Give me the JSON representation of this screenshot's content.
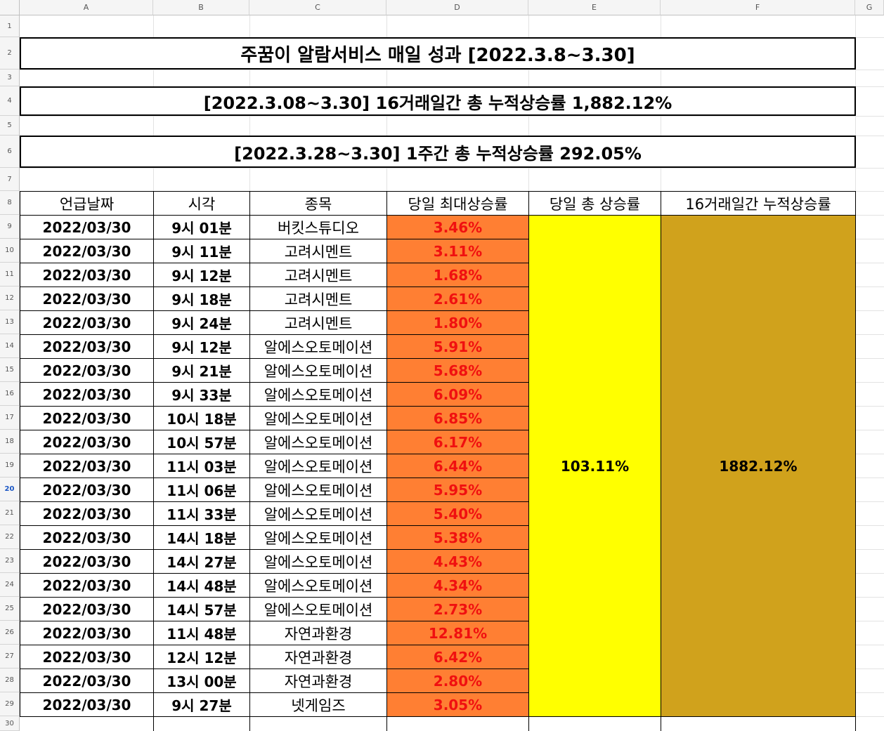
{
  "sheet": {
    "columns": [
      "A",
      "B",
      "C",
      "D",
      "E",
      "F",
      "G"
    ],
    "rows": [
      "1",
      "2",
      "3",
      "4",
      "5",
      "6",
      "7",
      "8",
      "9",
      "10",
      "11",
      "12",
      "13",
      "14",
      "15",
      "16",
      "17",
      "18",
      "19",
      "20",
      "21",
      "22",
      "23",
      "24",
      "25",
      "26",
      "27",
      "28",
      "29",
      "30"
    ],
    "active_row": "20"
  },
  "titles": {
    "main": "주꿈이 알람서비스 매일 성과 [2022.3.8~3.30]",
    "cumulative": "[2022.3.08~3.30] 16거래일간 총 누적상승률 1,882.12%",
    "weekly": "[2022.3.28~3.30] 1주간 총 누적상승률 292.05%"
  },
  "table": {
    "headers": {
      "date": "언급날짜",
      "time": "시각",
      "stock": "종목",
      "daily_max": "당일 최대상승률",
      "daily_total": "당일 총 상승률",
      "cumulative": "16거래일간 누적상승률"
    },
    "rows": [
      {
        "date": "2022/03/30",
        "time": "9시 01분",
        "stock": "버킷스튜디오",
        "rate": "3.46%"
      },
      {
        "date": "2022/03/30",
        "time": "9시 11분",
        "stock": "고려시멘트",
        "rate": "3.11%"
      },
      {
        "date": "2022/03/30",
        "time": "9시 12분",
        "stock": "고려시멘트",
        "rate": "1.68%"
      },
      {
        "date": "2022/03/30",
        "time": "9시 18분",
        "stock": "고려시멘트",
        "rate": "2.61%"
      },
      {
        "date": "2022/03/30",
        "time": "9시 24분",
        "stock": "고려시멘트",
        "rate": "1.80%"
      },
      {
        "date": "2022/03/30",
        "time": "9시 12분",
        "stock": "알에스오토메이션",
        "rate": "5.91%"
      },
      {
        "date": "2022/03/30",
        "time": "9시 21분",
        "stock": "알에스오토메이션",
        "rate": "5.68%"
      },
      {
        "date": "2022/03/30",
        "time": "9시 33분",
        "stock": "알에스오토메이션",
        "rate": "6.09%"
      },
      {
        "date": "2022/03/30",
        "time": "10시 18분",
        "stock": "알에스오토메이션",
        "rate": "6.85%"
      },
      {
        "date": "2022/03/30",
        "time": "10시 57분",
        "stock": "알에스오토메이션",
        "rate": "6.17%"
      },
      {
        "date": "2022/03/30",
        "time": "11시 03분",
        "stock": "알에스오토메이션",
        "rate": "6.44%"
      },
      {
        "date": "2022/03/30",
        "time": "11시 06분",
        "stock": "알에스오토메이션",
        "rate": "5.95%"
      },
      {
        "date": "2022/03/30",
        "time": "11시 33분",
        "stock": "알에스오토메이션",
        "rate": "5.40%"
      },
      {
        "date": "2022/03/30",
        "time": "14시 18분",
        "stock": "알에스오토메이션",
        "rate": "5.38%"
      },
      {
        "date": "2022/03/30",
        "time": "14시 27분",
        "stock": "알에스오토메이션",
        "rate": "4.43%"
      },
      {
        "date": "2022/03/30",
        "time": "14시 48분",
        "stock": "알에스오토메이션",
        "rate": "4.34%"
      },
      {
        "date": "2022/03/30",
        "time": "14시 57분",
        "stock": "알에스오토메이션",
        "rate": "2.73%"
      },
      {
        "date": "2022/03/30",
        "time": "11시 48분",
        "stock": "자연과환경",
        "rate": "12.81%"
      },
      {
        "date": "2022/03/30",
        "time": "12시 12분",
        "stock": "자연과환경",
        "rate": "6.42%"
      },
      {
        "date": "2022/03/30",
        "time": "13시 00분",
        "stock": "자연과환경",
        "rate": "2.80%"
      },
      {
        "date": "2022/03/30",
        "time": "9시 27분",
        "stock": "넷게임즈",
        "rate": "3.05%"
      }
    ],
    "daily_total_value": "103.11%",
    "cumulative_value": "1882.12%"
  },
  "colors": {
    "rate_fill": "#ff7f33",
    "rate_text": "#f01010",
    "daily_total_fill": "#ffff00",
    "cumulative_fill": "#d0a21c",
    "active_row_header": "#1a56c4"
  }
}
